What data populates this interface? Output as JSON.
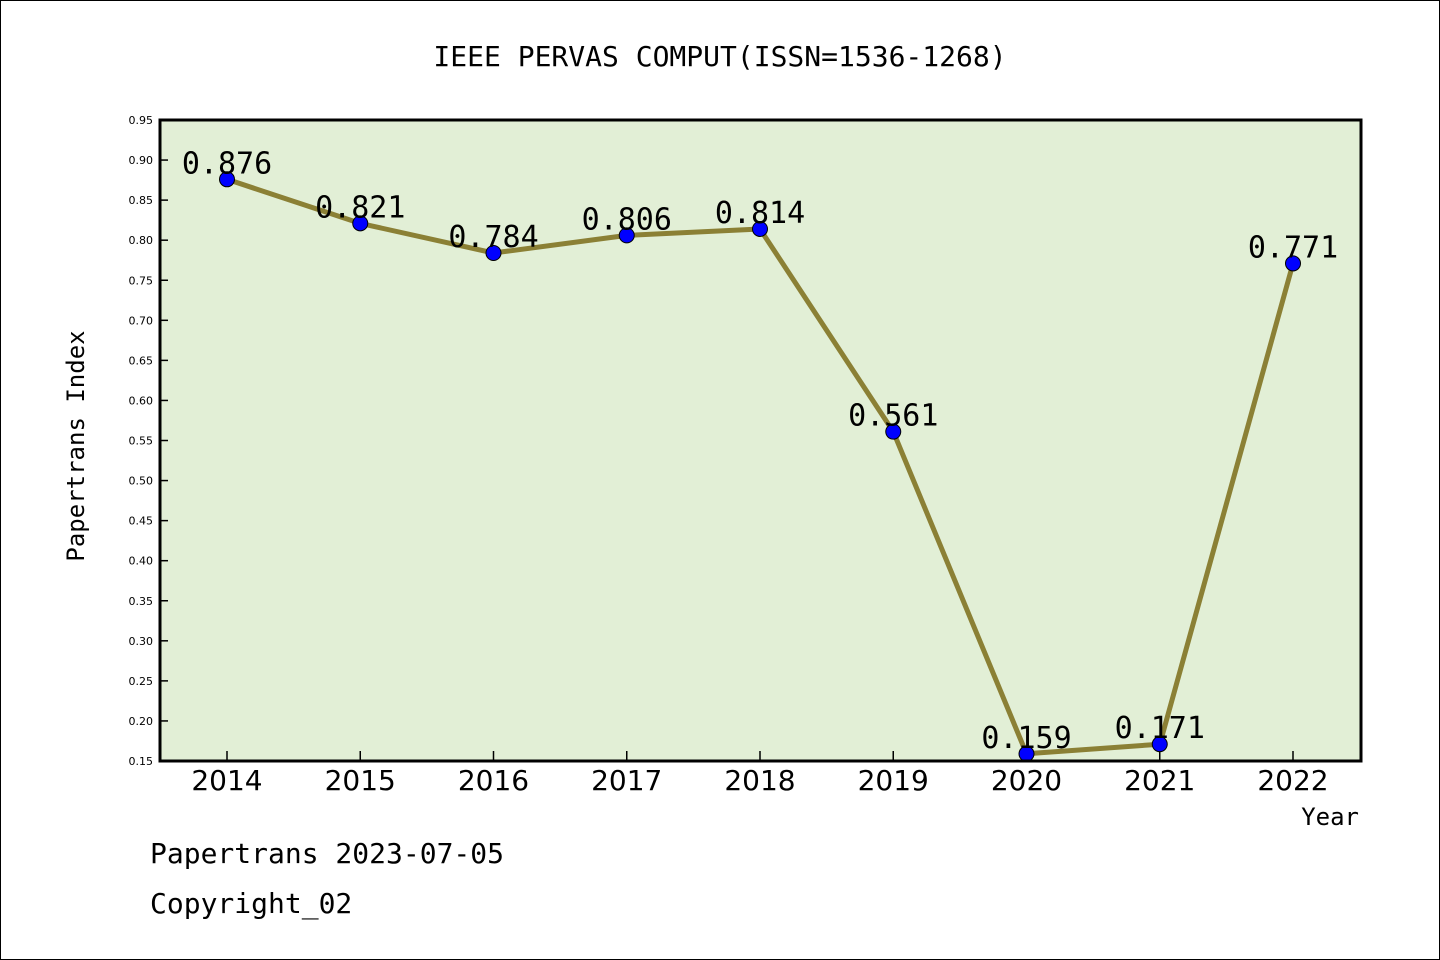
{
  "chart_data": {
    "type": "line",
    "title": "IEEE PERVAS COMPUT(ISSN=1536-1268)",
    "xlabel": "Year",
    "ylabel": "Papertrans Index",
    "categories": [
      "2014",
      "2015",
      "2016",
      "2017",
      "2018",
      "2019",
      "2020",
      "2021",
      "2022"
    ],
    "series": [
      {
        "values": [
          0.876,
          0.821,
          0.784,
          0.806,
          0.814,
          0.561,
          0.159,
          0.171,
          0.771
        ],
        "labels": [
          "0.876",
          "0.821",
          "0.784",
          "0.806",
          "0.814",
          "0.561",
          "0.159",
          "0.171",
          "0.771"
        ]
      }
    ],
    "ylim": [
      0.15,
      0.95
    ],
    "yticks": [
      "0.15",
      "0.20",
      "0.25",
      "0.30",
      "0.35",
      "0.40",
      "0.45",
      "0.50",
      "0.55",
      "0.60",
      "0.65",
      "0.70",
      "0.75",
      "0.80",
      "0.85",
      "0.90",
      "0.95"
    ],
    "grid": false,
    "colors": {
      "plot_background": "#e2efd6",
      "line": "#8b8035",
      "marker": "#0000ff"
    }
  },
  "footer": {
    "line1": "Papertrans 2023-07-05",
    "line2": "Copyright_02"
  }
}
